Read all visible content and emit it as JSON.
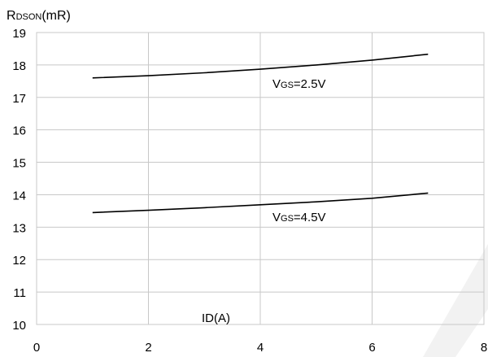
{
  "chart_data": {
    "type": "line",
    "title": "",
    "ylabel": {
      "prefix": "R",
      "subscript": "DSON",
      "suffix": "(mR)"
    },
    "xlabel": "ID(A)",
    "xlim": [
      0,
      8
    ],
    "ylim": [
      10,
      19
    ],
    "xticks": [
      0,
      2,
      4,
      6,
      8
    ],
    "yticks": [
      10,
      11,
      12,
      13,
      14,
      15,
      16,
      17,
      18,
      19
    ],
    "grid": true,
    "series": [
      {
        "label": {
          "prefix": "V",
          "subscript": "GS",
          "suffix": "=2.5V"
        },
        "x": [
          1,
          2,
          3,
          4,
          5,
          6,
          7
        ],
        "y": [
          17.6,
          17.67,
          17.76,
          17.87,
          18.0,
          18.15,
          18.33
        ]
      },
      {
        "label": {
          "prefix": "V",
          "subscript": "GS",
          "suffix": "=4.5V"
        },
        "x": [
          1,
          2,
          3,
          4,
          5,
          6,
          7
        ],
        "y": [
          13.45,
          13.52,
          13.6,
          13.69,
          13.78,
          13.89,
          14.05
        ]
      }
    ],
    "watermark_color": "#f0f0f0"
  }
}
